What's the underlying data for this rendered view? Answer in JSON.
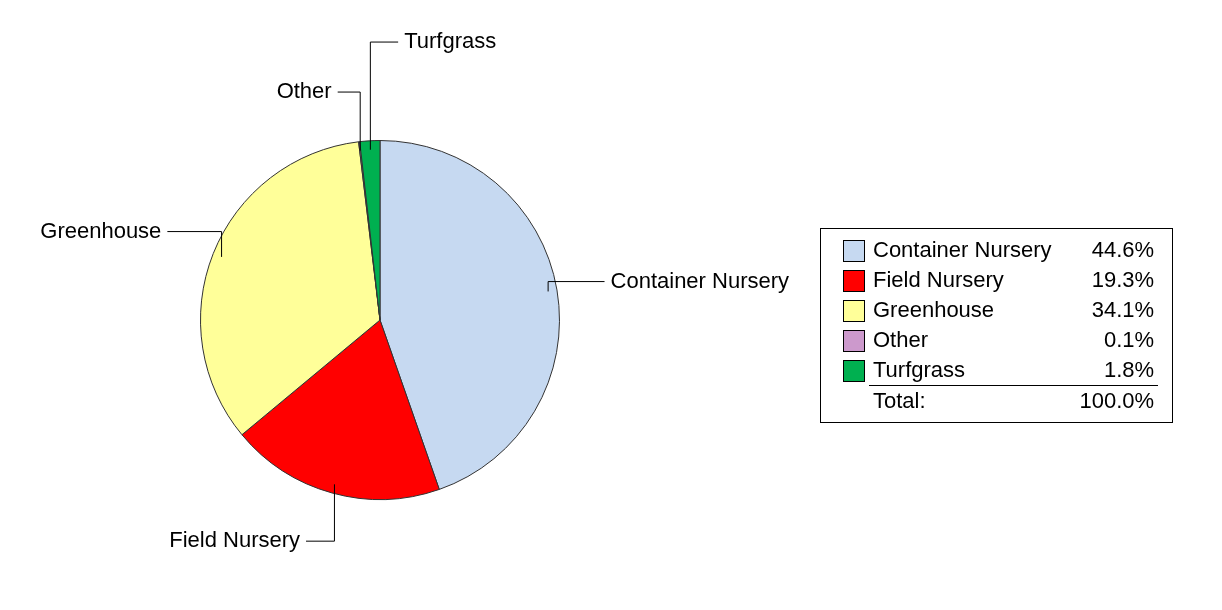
{
  "chart_data": {
    "type": "pie",
    "categories": [
      "Container Nursery",
      "Field Nursery",
      "Greenhouse",
      "Other",
      "Turfgrass"
    ],
    "values": [
      44.6,
      19.3,
      34.1,
      0.1,
      1.8
    ],
    "value_labels": [
      "44.6%",
      "19.3%",
      "34.1%",
      "0.1%",
      "1.8%"
    ],
    "colors": [
      "#c6d9f1",
      "#ff0000",
      "#ffff99",
      "#cc99cc",
      "#00b050"
    ],
    "legend": "right",
    "annotations": [
      "Total:"
    ],
    "totals": [
      "100.0%"
    ]
  }
}
